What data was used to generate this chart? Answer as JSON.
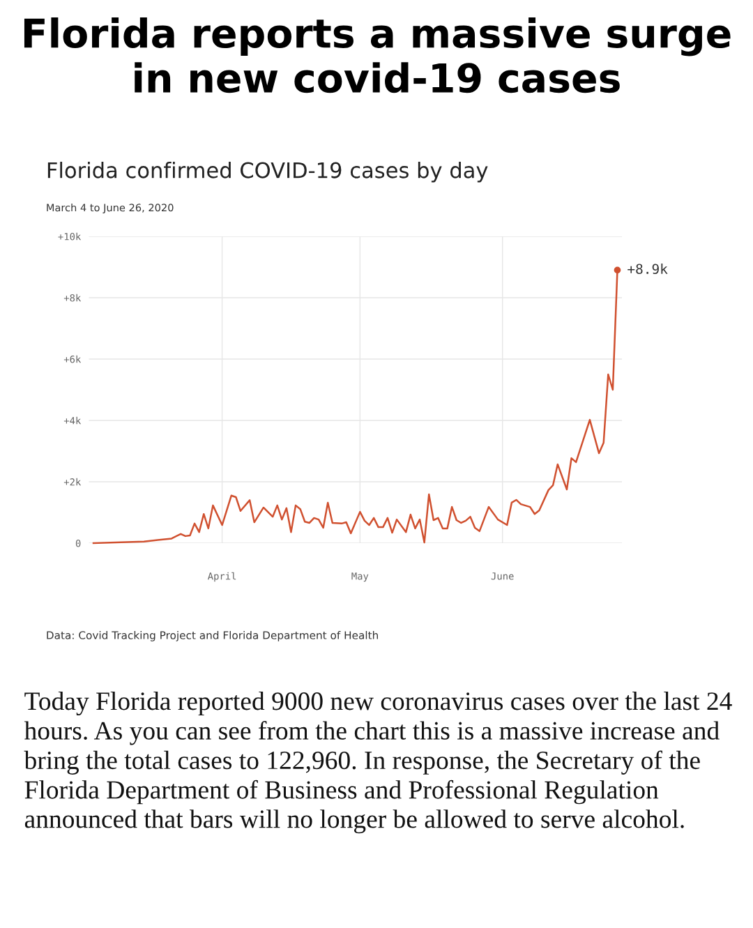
{
  "chart_data": {
    "type": "line",
    "title": "Florida reports a massive surge in new covid-19 cases",
    "subtitle": "Florida confirmed COVID-19 cases by day",
    "annotations": [
      "March 4 to June 26, 2020",
      "Data: Covid Tracking Project and Florida Department of Health",
      "Today Florida reported 9000 new coronavirus cases over the last 24 hours. As you can see from the chart this is a massive increase and bring the total cases to 122,960. In response, the Secretary of the Florida Department of Business and Professional Regulation announced that bars will no longer be allowed to serve alcohol.",
      {
        "text": "+8.9k",
        "x": "2020-06-26",
        "y": 8900
      }
    ],
    "x": [
      "2020-03-04",
      "2020-03-15",
      "2020-03-18",
      "2020-03-21",
      "2020-03-23",
      "2020-03-24",
      "2020-03-25",
      "2020-03-26",
      "2020-03-27",
      "2020-03-28",
      "2020-03-29",
      "2020-03-30",
      "2020-04-01",
      "2020-04-03",
      "2020-04-04",
      "2020-04-05",
      "2020-04-07",
      "2020-04-08",
      "2020-04-10",
      "2020-04-12",
      "2020-04-13",
      "2020-04-14",
      "2020-04-15",
      "2020-04-16",
      "2020-04-17",
      "2020-04-18",
      "2020-04-19",
      "2020-04-20",
      "2020-04-21",
      "2020-04-22",
      "2020-04-23",
      "2020-04-24",
      "2020-04-25",
      "2020-04-27",
      "2020-04-28",
      "2020-04-29",
      "2020-05-01",
      "2020-05-02",
      "2020-05-03",
      "2020-05-04",
      "2020-05-05",
      "2020-05-06",
      "2020-05-07",
      "2020-05-08",
      "2020-05-09",
      "2020-05-11",
      "2020-05-12",
      "2020-05-13",
      "2020-05-14",
      "2020-05-15",
      "2020-05-16",
      "2020-05-17",
      "2020-05-18",
      "2020-05-19",
      "2020-05-20",
      "2020-05-21",
      "2020-05-22",
      "2020-05-23",
      "2020-05-24",
      "2020-05-25",
      "2020-05-26",
      "2020-05-27",
      "2020-05-29",
      "2020-05-31",
      "2020-06-02",
      "2020-06-03",
      "2020-06-04",
      "2020-06-05",
      "2020-06-07",
      "2020-06-08",
      "2020-06-09",
      "2020-06-11",
      "2020-06-12",
      "2020-06-13",
      "2020-06-15",
      "2020-06-16",
      "2020-06-17",
      "2020-06-20",
      "2020-06-22",
      "2020-06-23",
      "2020-06-24",
      "2020-06-25",
      "2020-06-26"
    ],
    "series": [
      {
        "color": "#d0502f",
        "values": [
          0,
          50,
          100,
          150,
          300,
          230,
          250,
          640,
          360,
          950,
          480,
          1230,
          590,
          1550,
          1500,
          1050,
          1400,
          680,
          1160,
          860,
          1230,
          770,
          1140,
          360,
          1230,
          1110,
          700,
          660,
          820,
          770,
          500,
          1320,
          660,
          640,
          680,
          320,
          1020,
          730,
          590,
          820,
          520,
          520,
          820,
          340,
          770,
          360,
          930,
          480,
          770,
          20,
          1590,
          750,
          820,
          480,
          480,
          1180,
          750,
          660,
          730,
          860,
          500,
          390,
          1180,
          770,
          590,
          1320,
          1410,
          1270,
          1180,
          950,
          1070,
          1730,
          1890,
          2570,
          1750,
          2770,
          2640,
          4020,
          2930,
          3270,
          5500,
          5000,
          8900
        ]
      }
    ],
    "xlim": [
      "2020-03-03",
      "2020-06-27"
    ],
    "xticks": [
      {
        "value": "2020-04-01",
        "label": "April"
      },
      {
        "value": "2020-05-01",
        "label": "May"
      },
      {
        "value": "2020-06-01",
        "label": "June"
      }
    ],
    "ylim": [
      0,
      10000
    ],
    "yticks": [
      0,
      {
        "value": 2000,
        "label": "+2k"
      },
      {
        "value": 4000,
        "label": "+4k"
      },
      {
        "value": 6000,
        "label": "+6k"
      },
      {
        "value": 8000,
        "label": "+8k"
      },
      {
        "value": 10000,
        "label": "+10k"
      }
    ],
    "grid": true
  }
}
